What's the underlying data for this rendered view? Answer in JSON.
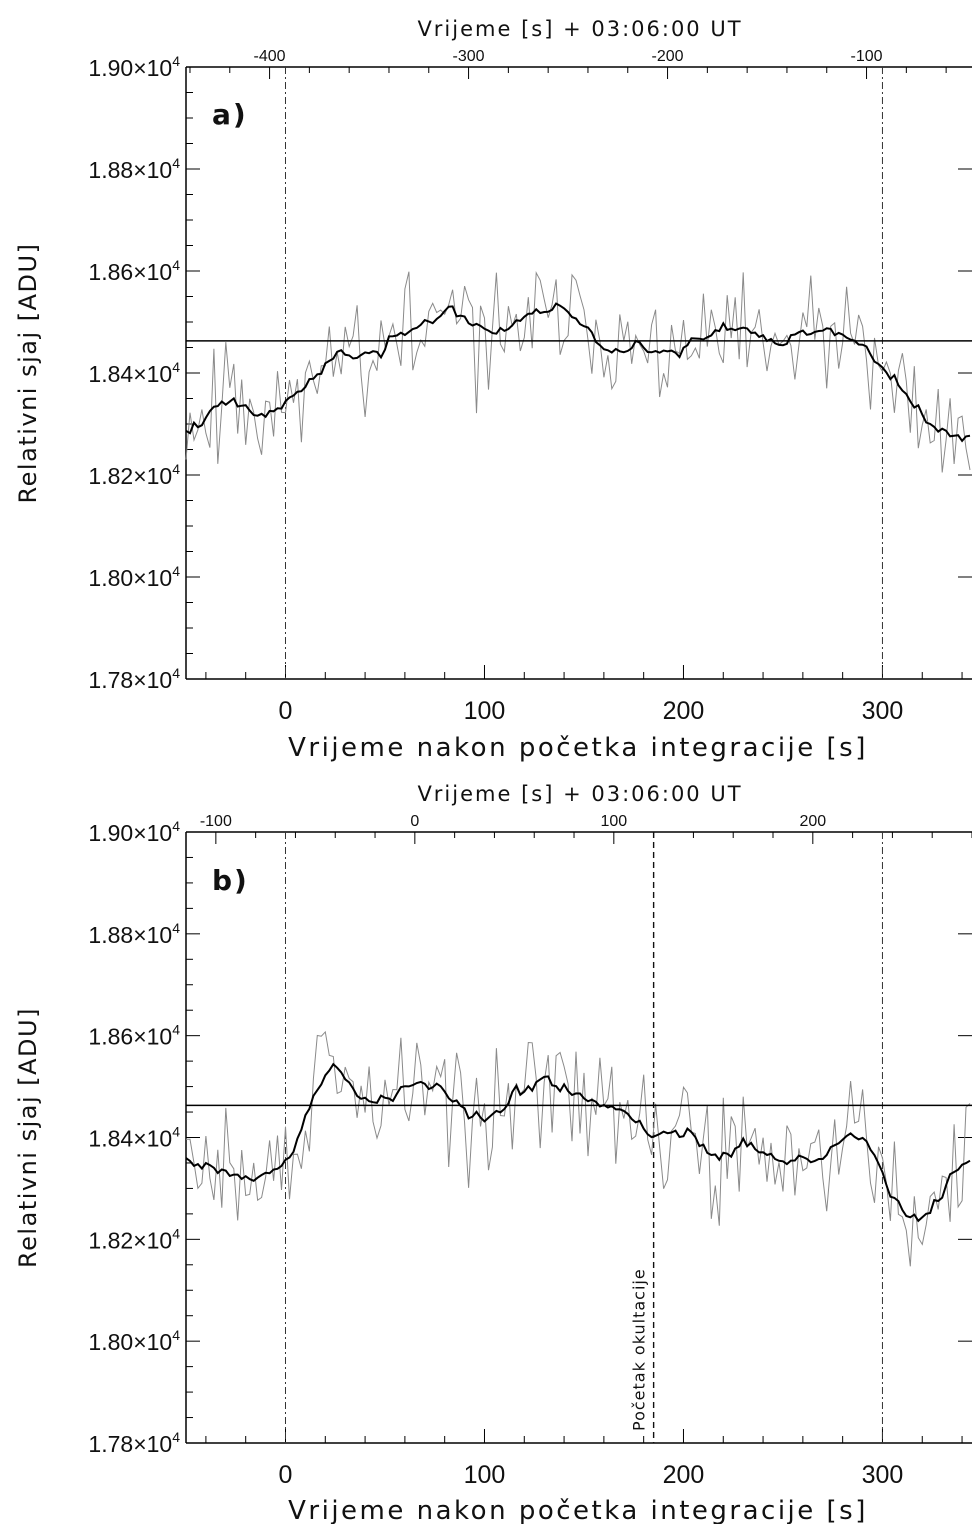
{
  "chart_data": [
    {
      "type": "line",
      "panel_label": "a)",
      "top_axis_title": "Vrijeme [s] + 03:06:00 UT",
      "xlabel": "Vrijeme nakon početka integracije [s]",
      "ylabel": "Relativni sjaj [ADU]",
      "xlim": [
        -50,
        345
      ],
      "ylim": [
        17800,
        19000
      ],
      "x_ticks": [
        "0",
        "100",
        "200",
        "300"
      ],
      "y_ticks": [
        "1.78",
        "1.80",
        "1.82",
        "1.84",
        "1.86",
        "1.88",
        "1.90"
      ],
      "y_tick_suffix": "×10",
      "y_tick_exp": "4",
      "top_ticks": [
        {
          "label": "-400",
          "x": -8
        },
        {
          "label": "-300",
          "x": 92
        },
        {
          "label": "-200",
          "x": 192
        },
        {
          "label": "-100",
          "x": 292
        }
      ],
      "reference_level": 18463,
      "vertical_markers": [
        0,
        300
      ],
      "annotation": null,
      "series": [
        {
          "role": "raw",
          "color": "#8a8a8a",
          "base": 18440,
          "seed": 11,
          "anchors": [
            [
              -50,
              18300
            ],
            [
              -30,
              18360
            ],
            [
              -10,
              18330
            ],
            [
              0,
              18350
            ],
            [
              20,
              18430
            ],
            [
              40,
              18470
            ],
            [
              60,
              18440
            ],
            [
              80,
              18510
            ],
            [
              100,
              18490
            ],
            [
              120,
              18490
            ],
            [
              140,
              18520
            ],
            [
              160,
              18490
            ],
            [
              180,
              18440
            ],
            [
              200,
              18440
            ],
            [
              220,
              18460
            ],
            [
              240,
              18440
            ],
            [
              260,
              18470
            ],
            [
              280,
              18460
            ],
            [
              300,
              18400
            ],
            [
              320,
              18320
            ],
            [
              345,
              18260
            ]
          ]
        },
        {
          "role": "smoothed",
          "color": "#000000",
          "base": 18440,
          "seed": 11,
          "anchors": [
            [
              -50,
              18300
            ],
            [
              -30,
              18360
            ],
            [
              -10,
              18330
            ],
            [
              0,
              18350
            ],
            [
              20,
              18430
            ],
            [
              40,
              18470
            ],
            [
              60,
              18440
            ],
            [
              80,
              18510
            ],
            [
              100,
              18490
            ],
            [
              120,
              18490
            ],
            [
              140,
              18520
            ],
            [
              160,
              18490
            ],
            [
              180,
              18440
            ],
            [
              200,
              18440
            ],
            [
              220,
              18460
            ],
            [
              240,
              18440
            ],
            [
              260,
              18470
            ],
            [
              280,
              18460
            ],
            [
              300,
              18400
            ],
            [
              320,
              18320
            ],
            [
              345,
              18260
            ]
          ]
        }
      ]
    },
    {
      "type": "line",
      "panel_label": "b)",
      "top_axis_title": "Vrijeme [s] + 03:06:00 UT",
      "xlabel": "Vrijeme nakon početka integracije [s]",
      "ylabel": "Relativni sjaj [ADU]",
      "xlim": [
        -50,
        345
      ],
      "ylim": [
        17800,
        19000
      ],
      "x_ticks": [
        "0",
        "100",
        "200",
        "300"
      ],
      "y_ticks": [
        "1.78",
        "1.80",
        "1.82",
        "1.84",
        "1.86",
        "1.88",
        "1.90"
      ],
      "y_tick_suffix": "×10",
      "y_tick_exp": "4",
      "top_ticks": [
        {
          "label": "-100",
          "x": -35
        },
        {
          "label": "0",
          "x": 65
        },
        {
          "label": "100",
          "x": 165
        },
        {
          "label": "200",
          "x": 265
        }
      ],
      "reference_level": 18463,
      "vertical_markers": [
        0,
        300
      ],
      "annotation": {
        "text": "Početak okultacije",
        "x": 185
      },
      "series": [
        {
          "role": "raw",
          "color": "#8a8a8a",
          "base": 18420,
          "seed": 29,
          "anchors": [
            [
              -50,
              18360
            ],
            [
              -30,
              18330
            ],
            [
              -10,
              18320
            ],
            [
              0,
              18350
            ],
            [
              10,
              18420
            ],
            [
              20,
              18530
            ],
            [
              40,
              18460
            ],
            [
              60,
              18480
            ],
            [
              80,
              18490
            ],
            [
              100,
              18460
            ],
            [
              115,
              18460
            ],
            [
              125,
              18540
            ],
            [
              140,
              18470
            ],
            [
              160,
              18480
            ],
            [
              185,
              18400
            ],
            [
              220,
              18390
            ],
            [
              260,
              18380
            ],
            [
              290,
              18400
            ],
            [
              300,
              18350
            ],
            [
              310,
              18250
            ],
            [
              330,
              18260
            ],
            [
              345,
              18380
            ]
          ]
        },
        {
          "role": "smoothed",
          "color": "#000000",
          "base": 18420,
          "seed": 29,
          "anchors": [
            [
              -50,
              18360
            ],
            [
              -30,
              18330
            ],
            [
              -10,
              18320
            ],
            [
              0,
              18350
            ],
            [
              10,
              18420
            ],
            [
              20,
              18530
            ],
            [
              40,
              18460
            ],
            [
              60,
              18480
            ],
            [
              80,
              18490
            ],
            [
              100,
              18460
            ],
            [
              115,
              18460
            ],
            [
              125,
              18540
            ],
            [
              140,
              18470
            ],
            [
              160,
              18480
            ],
            [
              185,
              18400
            ],
            [
              220,
              18390
            ],
            [
              260,
              18380
            ],
            [
              290,
              18400
            ],
            [
              300,
              18350
            ],
            [
              310,
              18250
            ],
            [
              330,
              18260
            ],
            [
              345,
              18380
            ]
          ]
        }
      ]
    }
  ]
}
